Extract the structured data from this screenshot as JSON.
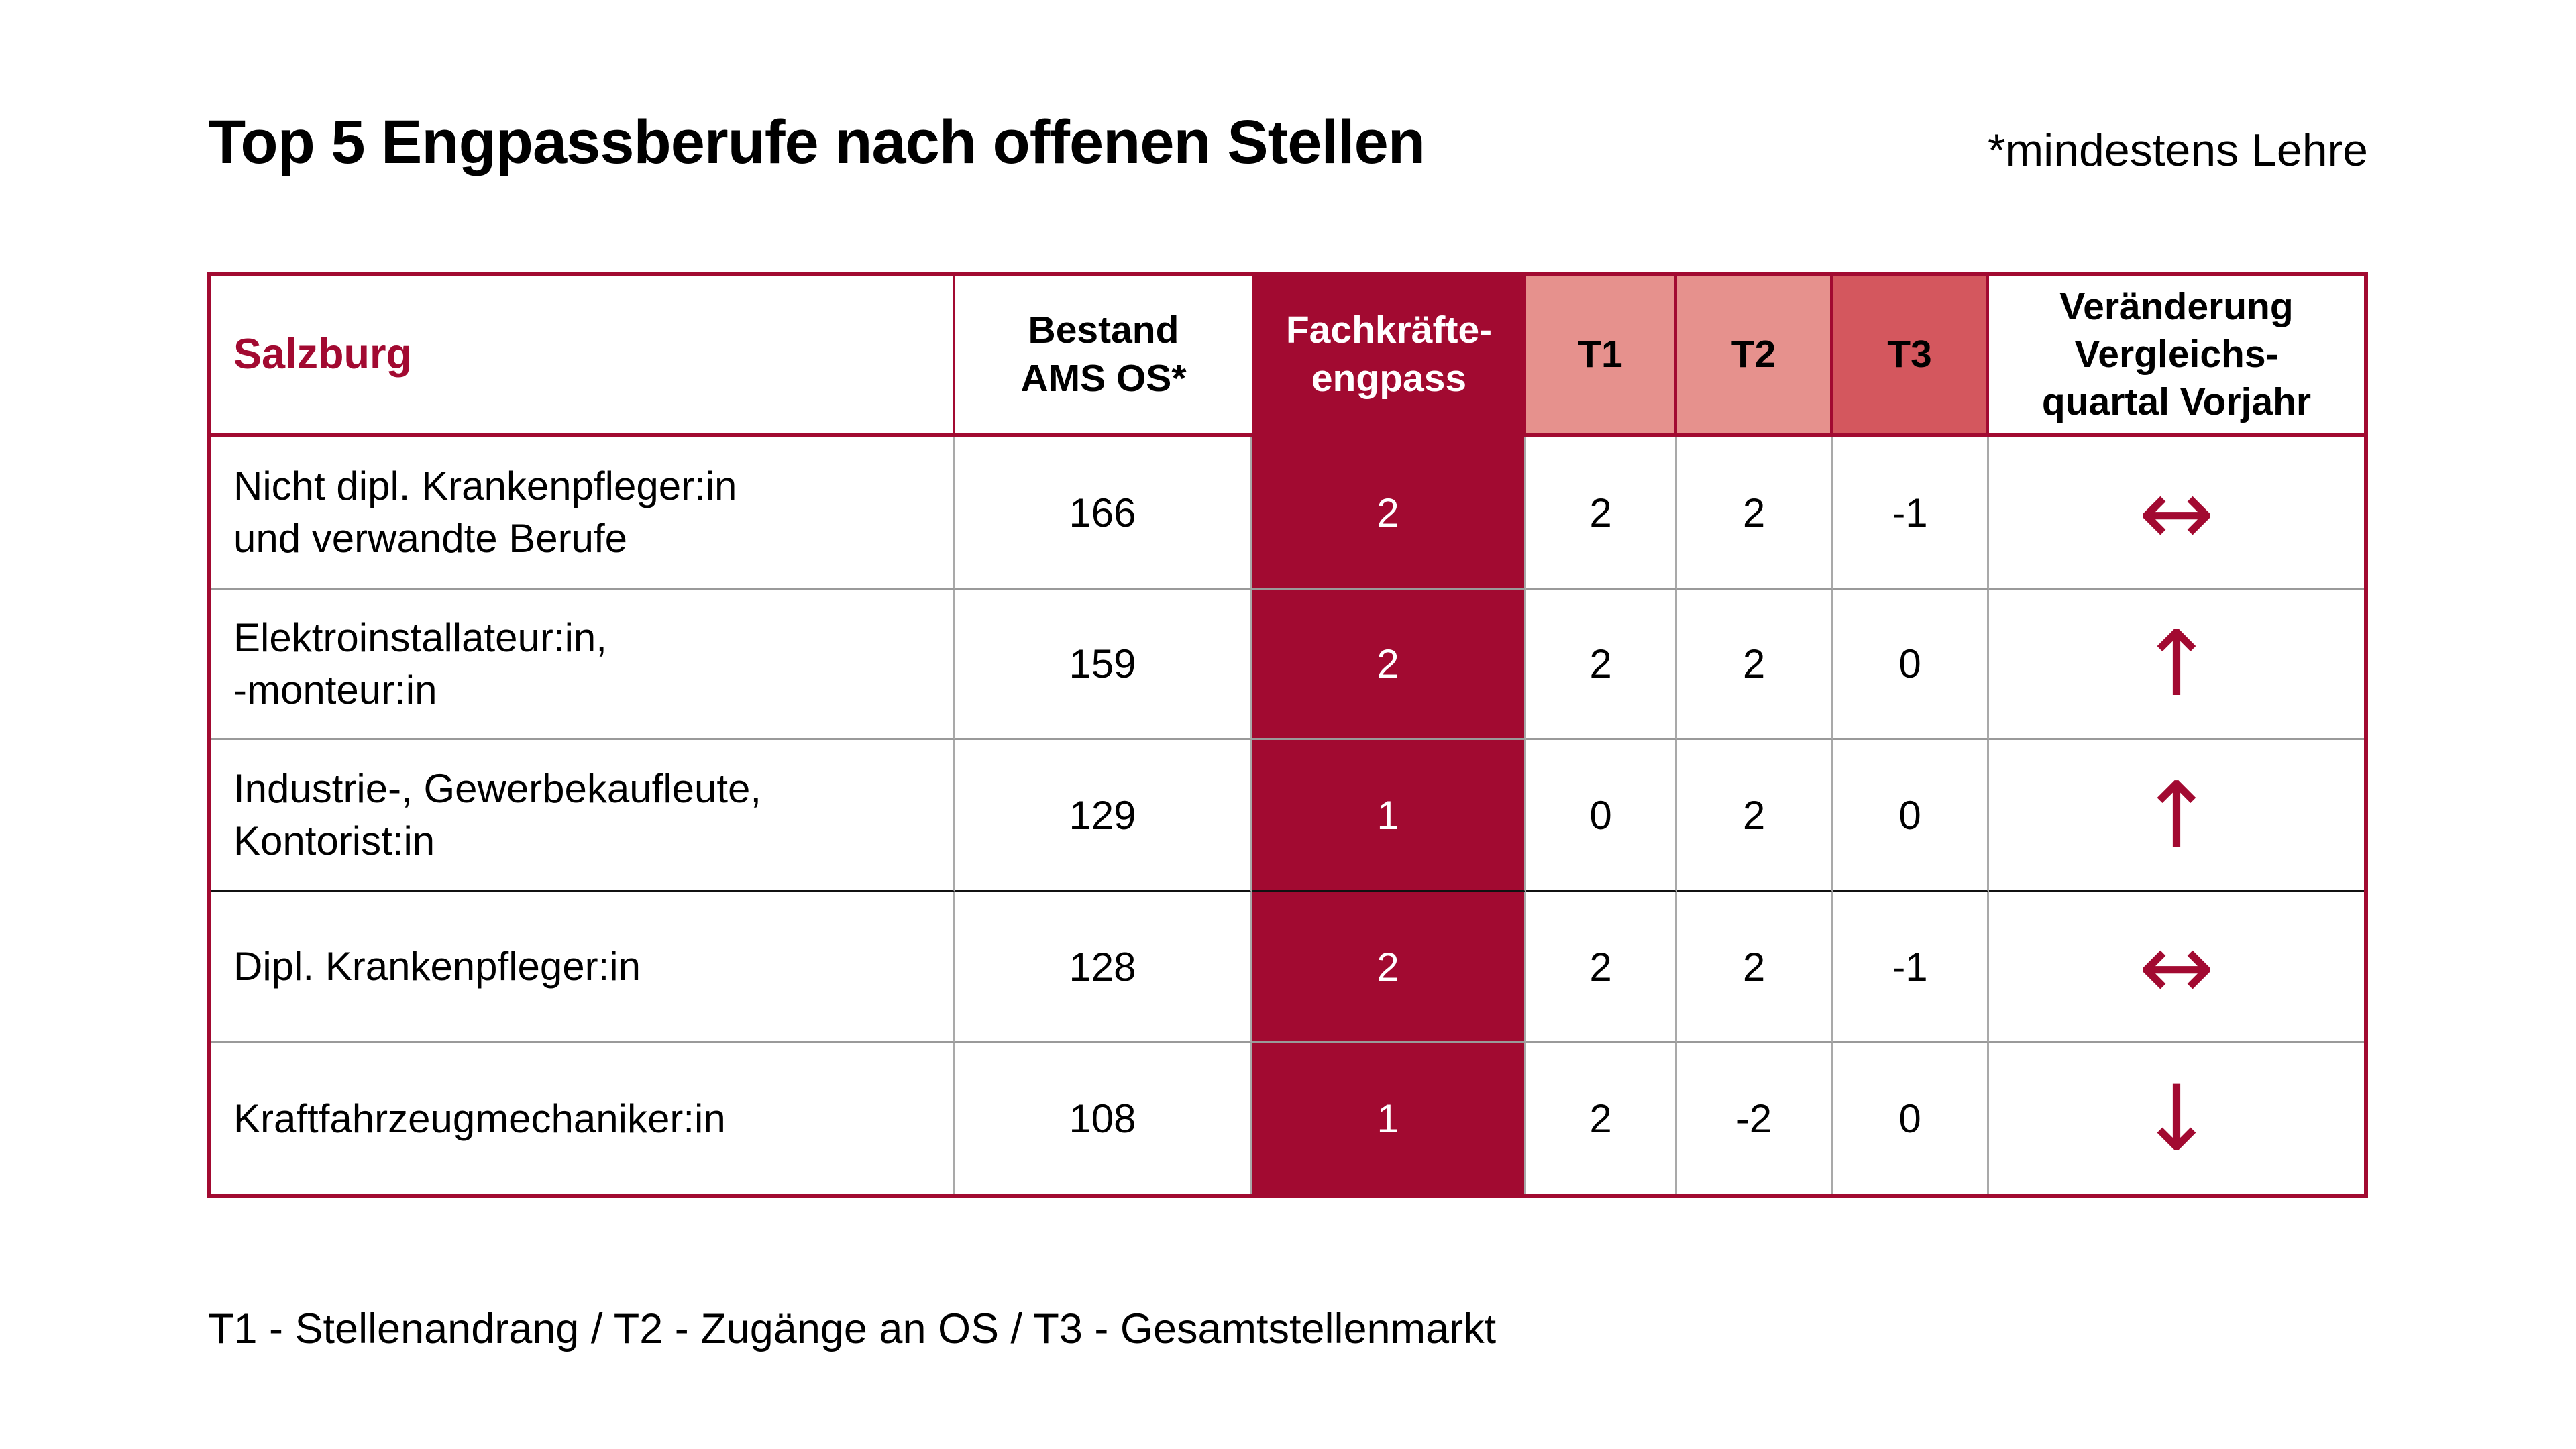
{
  "title": "Top 5 Engpassberufe nach offenen Stellen",
  "note": "*mindestens Lehre",
  "legend": "T1 - Stellenandrang / T2 - Zugänge an OS / T3 - Gesamtstellenmarkt",
  "colors": {
    "brand_red": "#a20a31",
    "t1_t2_header_bg": "#e6918d",
    "t3_header_bg": "#d4575e",
    "grid_line_gray": "#a9a9a9"
  },
  "table": {
    "region_label": "Salzburg",
    "columns": {
      "bestand": "Bestand\nAMS OS*",
      "engpass": "Fachkräfte-\nengpass",
      "t1": "T1",
      "t2": "T2",
      "t3": "T3",
      "veraenderung": "Veränderung\nVergleichs-\nquartal Vorjahr"
    },
    "rows": [
      {
        "name": "Nicht dipl. Krankenpfleger:in\nund verwandte Berufe",
        "bestand": "166",
        "engpass": "2",
        "t1": "2",
        "t2": "2",
        "t3": "-1",
        "trend": "↔",
        "trend_name": "unchanged"
      },
      {
        "name": "Elektroinstallateur:in,\n-monteur:in",
        "bestand": "159",
        "engpass": "2",
        "t1": "2",
        "t2": "2",
        "t3": "0",
        "trend": "↑",
        "trend_name": "up"
      },
      {
        "name": "Industrie-, Gewerbekaufleute,\nKontorist:in",
        "bestand": "129",
        "engpass": "1",
        "t1": "0",
        "t2": "2",
        "t3": "0",
        "trend": "↑",
        "trend_name": "up"
      },
      {
        "name": "Dipl. Krankenpfleger:in",
        "bestand": "128",
        "engpass": "2",
        "t1": "2",
        "t2": "2",
        "t3": "-1",
        "trend": "↔",
        "trend_name": "unchanged"
      },
      {
        "name": "Kraftfahrzeugmechaniker:in",
        "bestand": "108",
        "engpass": "1",
        "t1": "2",
        "t2": "-2",
        "t3": "0",
        "trend": "↓",
        "trend_name": "down"
      }
    ]
  }
}
